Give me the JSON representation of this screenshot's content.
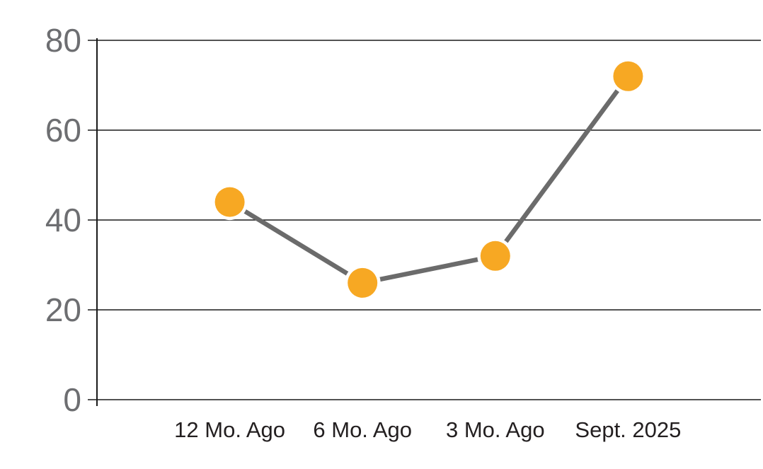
{
  "chart_data": {
    "type": "line",
    "categories": [
      "12 Mo. Ago",
      "6 Mo. Ago",
      "3 Mo. Ago",
      "Sept. 2025"
    ],
    "series": [
      {
        "name": "series-1",
        "values": [
          44,
          26,
          32,
          72
        ]
      }
    ],
    "title": "",
    "xlabel": "",
    "ylabel": "",
    "ylim": [
      0,
      80
    ],
    "yticks": [
      0,
      20,
      40,
      60,
      80
    ],
    "grid": true,
    "legend": false,
    "legend_position": "none",
    "colors": {
      "background": "#FFFFFF",
      "marker_fill": "#F7A823",
      "marker_halo": "#FFFFFF",
      "line": "#6B6B6B",
      "gridline": "#1A1A1A",
      "axis_line": "#1A1A1A",
      "ytick_label": "#6D6E71",
      "xtick_label": "#231F20"
    }
  }
}
